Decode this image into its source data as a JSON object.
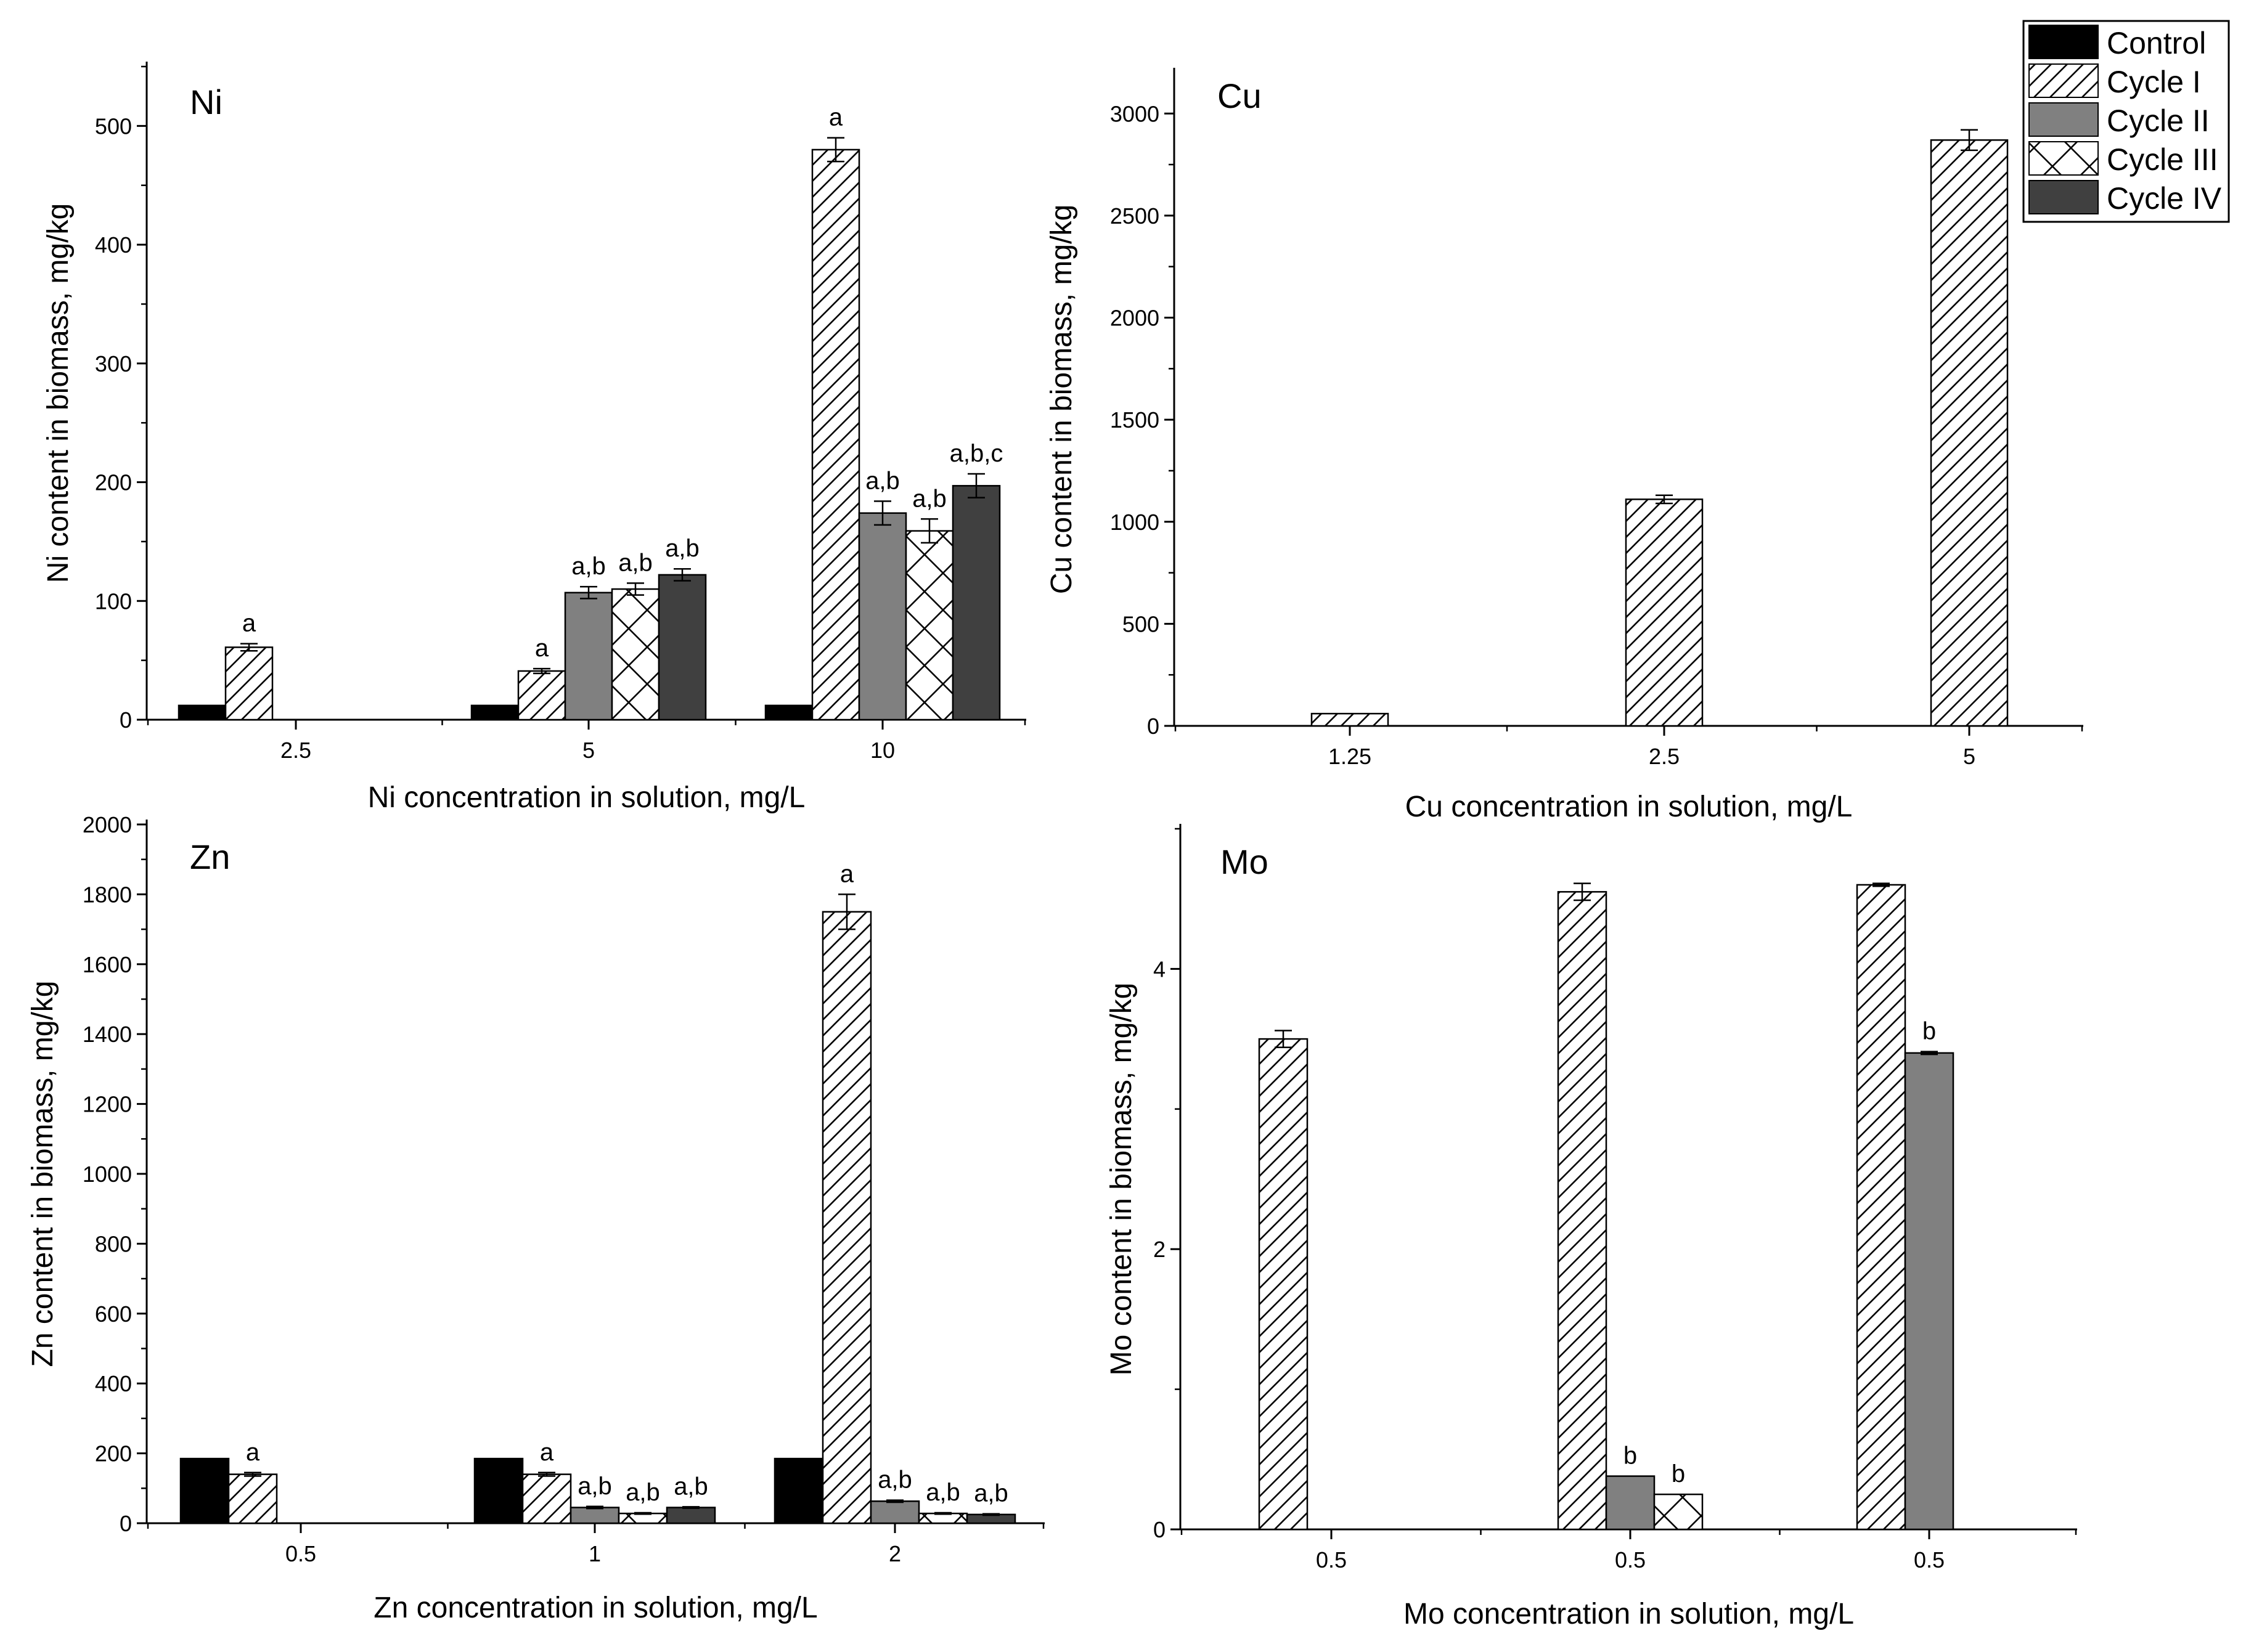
{
  "legend": {
    "entries": [
      {
        "name": "Control",
        "pattern": "solid-black"
      },
      {
        "name": "Cycle I",
        "pattern": "hatch"
      },
      {
        "name": "Cycle II",
        "pattern": "solid-gray"
      },
      {
        "name": "Cycle III",
        "pattern": "crosshatch"
      },
      {
        "name": "Cycle IV",
        "pattern": "solid-dark"
      }
    ]
  },
  "colors": {
    "control": "#000000",
    "cycle2": "#808080",
    "cycle4": "#404040",
    "hatch": "#000000"
  },
  "chart_data": [
    {
      "id": "ni",
      "type": "bar",
      "title": "Ni",
      "xlabel": "Ni concentration in solution, mg/L",
      "ylabel": "Ni content in biomass, mg/kg",
      "ylim": [
        0,
        550
      ],
      "yticks": [
        0,
        100,
        200,
        300,
        400,
        500
      ],
      "categories": [
        "2.5",
        "5",
        "10"
      ],
      "series": [
        {
          "name": "Control",
          "values": [
            12,
            12,
            12
          ],
          "errors": [
            0,
            0,
            0
          ],
          "labels": [
            "",
            "",
            ""
          ]
        },
        {
          "name": "Cycle I",
          "values": [
            61,
            41,
            480
          ],
          "errors": [
            3,
            2,
            10
          ],
          "labels": [
            "a",
            "a",
            "a"
          ]
        },
        {
          "name": "Cycle II",
          "values": [
            null,
            107,
            174
          ],
          "errors": [
            0,
            5,
            10
          ],
          "labels": [
            "",
            "a,b",
            "a,b"
          ]
        },
        {
          "name": "Cycle III",
          "values": [
            null,
            110,
            159
          ],
          "errors": [
            0,
            5,
            10
          ],
          "labels": [
            "",
            "a,b",
            "a,b"
          ]
        },
        {
          "name": "Cycle IV",
          "values": [
            null,
            122,
            197
          ],
          "errors": [
            0,
            5,
            10
          ],
          "labels": [
            "",
            "a,b",
            "a,b,c"
          ]
        }
      ]
    },
    {
      "id": "cu",
      "type": "bar",
      "title": "Cu",
      "xlabel": "Cu concentration in solution, mg/L",
      "ylabel": "Cu content in biomass, mg/kg",
      "ylim": [
        0,
        3200
      ],
      "yticks": [
        0,
        500,
        1000,
        1500,
        2000,
        2500,
        3000
      ],
      "categories": [
        "1.25",
        "2.5",
        "5"
      ],
      "series": [
        {
          "name": "Cycle I",
          "values": [
            60,
            1110,
            2870
          ],
          "errors": [
            0,
            20,
            50
          ],
          "labels": [
            "",
            "",
            ""
          ]
        }
      ]
    },
    {
      "id": "zn",
      "type": "bar",
      "title": "Zn",
      "xlabel": "Zn concentration in solution, mg/L",
      "ylabel": "Zn content in biomass, mg/kg",
      "ylim": [
        0,
        2000
      ],
      "yticks": [
        0,
        200,
        400,
        600,
        800,
        1000,
        1200,
        1400,
        1600,
        1800,
        2000
      ],
      "categories": [
        "0.5",
        "1",
        "2"
      ],
      "series": [
        {
          "name": "Control",
          "values": [
            185,
            185,
            185
          ],
          "errors": [
            0,
            0,
            0
          ],
          "labels": [
            "",
            "",
            ""
          ]
        },
        {
          "name": "Cycle I",
          "values": [
            140,
            140,
            1750
          ],
          "errors": [
            5,
            5,
            50
          ],
          "labels": [
            "a",
            "a",
            "a"
          ]
        },
        {
          "name": "Cycle II",
          "values": [
            null,
            45,
            63
          ],
          "errors": [
            0,
            3,
            3
          ],
          "labels": [
            "",
            "a,b",
            "a,b"
          ]
        },
        {
          "name": "Cycle III",
          "values": [
            null,
            28,
            28
          ],
          "errors": [
            0,
            2,
            2
          ],
          "labels": [
            "",
            "a,b",
            "a,b"
          ]
        },
        {
          "name": "Cycle IV",
          "values": [
            null,
            45,
            25
          ],
          "errors": [
            0,
            2,
            2
          ],
          "labels": [
            "",
            "a,b",
            "a,b"
          ]
        }
      ]
    },
    {
      "id": "mo",
      "type": "bar",
      "title": "Mo",
      "xlabel": "Mo concentration in solution, mg/L",
      "ylabel": "Mo content in biomass, mg/kg",
      "ylim": [
        0,
        5
      ],
      "yticks": [
        0,
        2,
        4
      ],
      "categories": [
        "0.5",
        "0.5",
        "0.5"
      ],
      "series": [
        {
          "name": "Cycle I",
          "values": [
            3.5,
            4.55,
            4.6
          ],
          "errors": [
            0.06,
            0.06,
            0.01
          ],
          "labels": [
            "",
            "",
            ""
          ]
        },
        {
          "name": "Cycle II",
          "values": [
            null,
            0.38,
            3.4
          ],
          "errors": [
            0,
            0,
            0.01
          ],
          "labels": [
            "",
            "b",
            "b"
          ]
        },
        {
          "name": "Cycle III",
          "values": [
            null,
            0.25,
            null
          ],
          "errors": [
            0,
            0,
            0
          ],
          "labels": [
            "",
            "b",
            ""
          ]
        }
      ]
    }
  ]
}
